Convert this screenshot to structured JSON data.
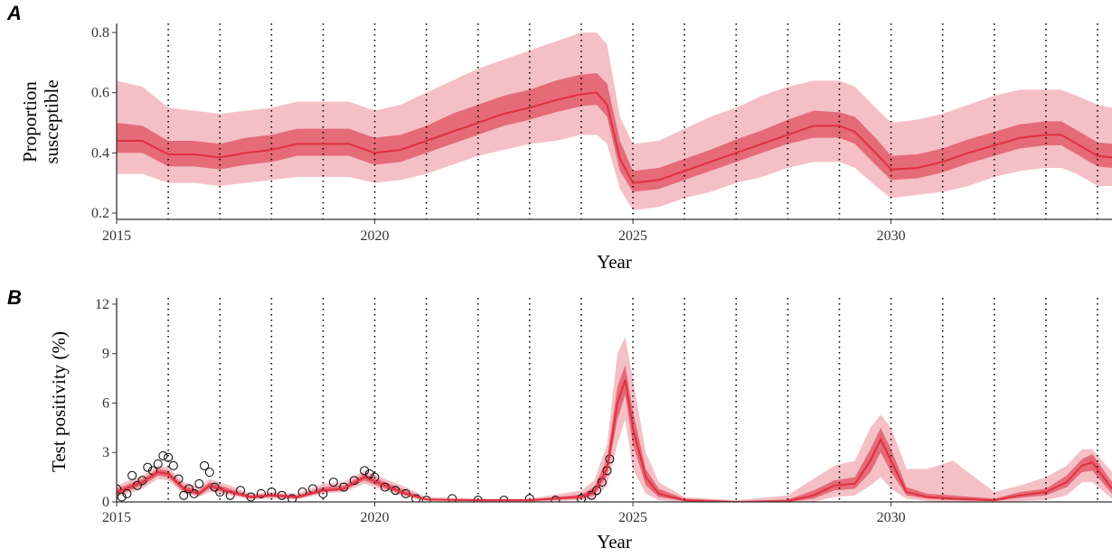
{
  "chart_data": [
    {
      "type": "line",
      "panel_label": "A",
      "ylabel": [
        "Proportion",
        "susceptible"
      ],
      "xlabel": "Year",
      "xlim": [
        2015,
        2034.28
      ],
      "ylim": [
        0.179,
        0.83
      ],
      "xticks": [
        2015,
        2020,
        2025,
        2030
      ],
      "yticks": [
        0.2,
        0.4,
        0.6,
        0.8
      ],
      "vlines": [
        2016,
        2017,
        2018,
        2019,
        2020,
        2021,
        2022,
        2023,
        2024,
        2025,
        2026,
        2027,
        2028,
        2029,
        2030,
        2031,
        2032,
        2033,
        2034
      ],
      "x": [
        2015,
        2015.5,
        2016,
        2016.5,
        2017,
        2017.5,
        2018,
        2018.5,
        2019,
        2019.5,
        2020,
        2020.5,
        2021,
        2021.5,
        2022,
        2022.5,
        2023,
        2023.5,
        2024,
        2024.3,
        2024.5,
        2024.75,
        2025,
        2025.5,
        2026,
        2026.5,
        2027,
        2027.5,
        2028,
        2028.5,
        2029,
        2029.3,
        2029.7,
        2030,
        2030.5,
        2031,
        2031.5,
        2032,
        2032.5,
        2033,
        2033.3,
        2033.6,
        2034,
        2034.28
      ],
      "values": [
        0.44,
        0.44,
        0.395,
        0.395,
        0.385,
        0.4,
        0.41,
        0.43,
        0.43,
        0.43,
        0.4,
        0.41,
        0.44,
        0.47,
        0.5,
        0.53,
        0.55,
        0.575,
        0.595,
        0.6,
        0.56,
        0.38,
        0.3,
        0.31,
        0.34,
        0.37,
        0.4,
        0.43,
        0.46,
        0.49,
        0.49,
        0.47,
        0.4,
        0.345,
        0.35,
        0.37,
        0.4,
        0.425,
        0.45,
        0.46,
        0.46,
        0.43,
        0.39,
        0.385
      ],
      "color": "#e0303f",
      "bands": [
        {
          "color": "#f4c0c6",
          "lower": [
            0.33,
            0.33,
            0.3,
            0.3,
            0.29,
            0.3,
            0.31,
            0.32,
            0.32,
            0.32,
            0.3,
            0.31,
            0.33,
            0.36,
            0.39,
            0.41,
            0.43,
            0.44,
            0.46,
            0.46,
            0.43,
            0.28,
            0.21,
            0.22,
            0.25,
            0.27,
            0.3,
            0.32,
            0.35,
            0.37,
            0.37,
            0.35,
            0.29,
            0.25,
            0.26,
            0.27,
            0.29,
            0.32,
            0.34,
            0.35,
            0.35,
            0.33,
            0.29,
            0.29
          ],
          "upper": [
            0.64,
            0.62,
            0.55,
            0.54,
            0.53,
            0.54,
            0.55,
            0.57,
            0.57,
            0.57,
            0.54,
            0.56,
            0.6,
            0.64,
            0.68,
            0.71,
            0.74,
            0.77,
            0.8,
            0.8,
            0.76,
            0.52,
            0.43,
            0.44,
            0.48,
            0.52,
            0.55,
            0.59,
            0.62,
            0.64,
            0.64,
            0.62,
            0.55,
            0.5,
            0.51,
            0.53,
            0.56,
            0.59,
            0.61,
            0.61,
            0.61,
            0.59,
            0.56,
            0.55
          ]
        },
        {
          "color": "#e56b78",
          "lower": [
            0.4,
            0.4,
            0.355,
            0.355,
            0.345,
            0.36,
            0.37,
            0.39,
            0.39,
            0.39,
            0.36,
            0.37,
            0.4,
            0.43,
            0.46,
            0.49,
            0.51,
            0.535,
            0.555,
            0.56,
            0.52,
            0.34,
            0.27,
            0.28,
            0.31,
            0.34,
            0.37,
            0.4,
            0.43,
            0.45,
            0.45,
            0.43,
            0.36,
            0.31,
            0.315,
            0.335,
            0.365,
            0.39,
            0.415,
            0.425,
            0.425,
            0.395,
            0.355,
            0.35
          ],
          "upper": [
            0.5,
            0.49,
            0.44,
            0.44,
            0.43,
            0.45,
            0.46,
            0.48,
            0.48,
            0.48,
            0.45,
            0.46,
            0.49,
            0.53,
            0.56,
            0.59,
            0.61,
            0.64,
            0.66,
            0.665,
            0.63,
            0.44,
            0.34,
            0.35,
            0.38,
            0.41,
            0.445,
            0.475,
            0.51,
            0.54,
            0.535,
            0.52,
            0.45,
            0.39,
            0.395,
            0.415,
            0.445,
            0.47,
            0.495,
            0.505,
            0.505,
            0.475,
            0.435,
            0.43
          ]
        }
      ]
    },
    {
      "type": "line",
      "panel_label": "B",
      "ylabel": [
        "Test positivity (%)"
      ],
      "xlabel": "Year",
      "xlim": [
        2015,
        2034.28
      ],
      "ylim": [
        0,
        12.38
      ],
      "xticks": [
        2015,
        2020,
        2025,
        2030
      ],
      "yticks": [
        0,
        3,
        6,
        9,
        12
      ],
      "vlines": [
        2016,
        2017,
        2018,
        2019,
        2020,
        2021,
        2022,
        2023,
        2024,
        2025,
        2026,
        2027,
        2028,
        2029,
        2030,
        2031,
        2032,
        2033,
        2034
      ],
      "x": [
        2015,
        2015.5,
        2015.8,
        2016,
        2016.3,
        2016.6,
        2016.8,
        2017.2,
        2017.6,
        2018,
        2018.5,
        2019,
        2019.4,
        2019.8,
        2020.2,
        2020.6,
        2021,
        2022,
        2023,
        2024,
        2024.25,
        2024.5,
        2024.7,
        2024.85,
        2025,
        2025.25,
        2025.5,
        2026,
        2027,
        2028,
        2028.5,
        2028.9,
        2029.3,
        2029.6,
        2029.8,
        2030,
        2030.3,
        2030.7,
        2031.2,
        2032,
        2032.5,
        2033,
        2033.4,
        2033.7,
        2033.9,
        2034.28
      ],
      "values": [
        0.6,
        1.2,
        1.8,
        1.7,
        0.8,
        0.5,
        1.0,
        0.6,
        0.3,
        0.4,
        0.3,
        0.7,
        0.8,
        1.5,
        1.0,
        0.5,
        0.15,
        0.1,
        0.1,
        0.3,
        0.6,
        2.0,
        6.0,
        7.4,
        4.5,
        1.5,
        0.5,
        0.1,
        0,
        0.05,
        0.4,
        1.0,
        1.1,
        2.5,
        3.8,
        2.5,
        0.6,
        0.3,
        0.2,
        0.1,
        0.4,
        0.6,
        1.2,
        2.2,
        2.4,
        0.8
      ],
      "color": "#e0303f",
      "bands": [
        {
          "color": "#f4c0c6",
          "lower": [
            0.3,
            0.8,
            1.4,
            1.3,
            0.5,
            0.3,
            0.6,
            0.4,
            0.15,
            0.2,
            0.15,
            0.5,
            0.6,
            1.1,
            0.7,
            0.3,
            0.05,
            0,
            0,
            0.1,
            0.2,
            1.0,
            3.5,
            5.0,
            2.0,
            0.5,
            0.1,
            0,
            0,
            0,
            0,
            0.3,
            0.4,
            1.0,
            1.5,
            0.8,
            0.2,
            0.05,
            0,
            0,
            0.05,
            0.1,
            0.4,
            1.2,
            1.2,
            0.2
          ],
          "upper": [
            1.0,
            1.6,
            2.2,
            2.1,
            1.2,
            0.9,
            1.4,
            1.0,
            0.5,
            0.6,
            0.5,
            1.1,
            1.2,
            1.9,
            1.4,
            0.9,
            0.3,
            0.2,
            0.2,
            0.7,
            1.3,
            3.5,
            9.0,
            10.0,
            7.5,
            3.0,
            1.2,
            0.3,
            0.1,
            0.4,
            1.4,
            2.2,
            2.5,
            4.5,
            5.3,
            4.5,
            2.0,
            2.0,
            2.5,
            0.6,
            1.0,
            1.5,
            2.2,
            3.2,
            3.2,
            1.8
          ]
        },
        {
          "color": "#e56b78",
          "lower": [
            0.4,
            1.0,
            1.6,
            1.5,
            0.6,
            0.4,
            0.8,
            0.5,
            0.2,
            0.3,
            0.2,
            0.6,
            0.7,
            1.3,
            0.8,
            0.4,
            0.1,
            0.05,
            0.05,
            0.2,
            0.4,
            1.6,
            5.0,
            6.5,
            3.5,
            1.0,
            0.3,
            0.05,
            0,
            0,
            0.2,
            0.7,
            0.8,
            1.8,
            3.0,
            1.8,
            0.4,
            0.2,
            0.1,
            0.05,
            0.25,
            0.4,
            0.9,
            1.8,
            1.9,
            0.5
          ],
          "upper": [
            0.8,
            1.4,
            2.0,
            1.9,
            1.0,
            0.7,
            1.2,
            0.8,
            0.4,
            0.5,
            0.4,
            0.9,
            1.0,
            1.7,
            1.2,
            0.7,
            0.2,
            0.15,
            0.15,
            0.45,
            0.9,
            2.6,
            7.0,
            8.3,
            5.5,
            2.0,
            0.8,
            0.2,
            0.05,
            0.15,
            0.7,
            1.3,
            1.5,
            3.2,
            4.5,
            3.2,
            0.9,
            0.5,
            0.4,
            0.2,
            0.6,
            0.8,
            1.6,
            2.6,
            2.9,
            1.2
          ]
        }
      ],
      "points": {
        "color": "#000000",
        "x": [
          2015.0,
          2015.1,
          2015.2,
          2015.3,
          2015.4,
          2015.5,
          2015.6,
          2015.7,
          2015.8,
          2015.9,
          2016.0,
          2016.1,
          2016.2,
          2016.3,
          2016.4,
          2016.5,
          2016.6,
          2016.7,
          2016.8,
          2016.9,
          2017.0,
          2017.2,
          2017.4,
          2017.6,
          2017.8,
          2018.0,
          2018.2,
          2018.4,
          2018.6,
          2018.8,
          2019.0,
          2019.2,
          2019.4,
          2019.6,
          2019.8,
          2019.9,
          2020.0,
          2020.2,
          2020.4,
          2020.6,
          2020.8,
          2021.0,
          2021.5,
          2022.0,
          2022.5,
          2023.0,
          2023.5,
          2024.0,
          2024.2,
          2024.3,
          2024.4,
          2024.5,
          2024.55
        ],
        "values": [
          0.8,
          0.3,
          0.5,
          1.6,
          1.0,
          1.3,
          2.1,
          1.9,
          2.3,
          2.8,
          2.7,
          2.2,
          1.4,
          0.4,
          0.8,
          0.5,
          1.1,
          2.2,
          1.8,
          0.9,
          0.6,
          0.4,
          0.7,
          0.3,
          0.5,
          0.6,
          0.4,
          0.2,
          0.6,
          0.8,
          0.5,
          1.2,
          0.9,
          1.3,
          1.9,
          1.7,
          1.5,
          0.9,
          0.7,
          0.5,
          0.2,
          0.1,
          0.2,
          0.1,
          0.1,
          0.2,
          0.1,
          0.2,
          0.4,
          0.7,
          1.2,
          1.9,
          2.6
        ]
      }
    }
  ]
}
